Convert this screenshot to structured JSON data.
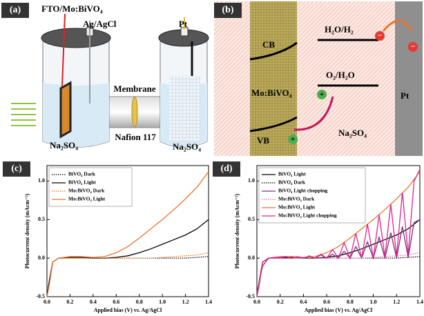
{
  "panel_a": {
    "label": "(a)",
    "working_electrode": "FTO/Mo:BiVO₄",
    "reference_electrode": "Ag/AgCl",
    "counter_electrode": "Pt",
    "membrane": "Membrane",
    "membrane_type": "Nafion 117",
    "electrolyte_left": "Na₂SO₄",
    "electrolyte_right": "Na₂SO₄"
  },
  "panel_b": {
    "label": "(b)",
    "cb": "CB",
    "vb": "VB",
    "semiconductor": "Mo:BiVO₄",
    "reduction": "H₂O/H₂",
    "oxidation": "O₂/H₂O",
    "electrolyte": "Na₂SO₄",
    "metal": "Pt",
    "electron": "−",
    "hole": "+"
  },
  "chart_data": [
    {
      "type": "line",
      "label": "(c)",
      "xlabel": "Applied bias (V) vs. Ag/AgCl",
      "ylabel": "Photocurrent density (mAcm⁻²)",
      "x": [
        0,
        0.02,
        0.05,
        0.1,
        0.2,
        0.3,
        0.4,
        0.5,
        0.6,
        0.7,
        0.8,
        0.9,
        1.0,
        1.1,
        1.2,
        1.3,
        1.4
      ],
      "xlim": [
        0,
        1.4
      ],
      "ylim": [
        -0.5,
        1.2
      ],
      "xticks": [
        {
          "value": 0,
          "label": "0.0"
        },
        0.2,
        0.4,
        0.6,
        0.8,
        {
          "value": 1,
          "label": "1.0"
        },
        1.2,
        1.4
      ],
      "yticks": [
        -0.5,
        {
          "value": 0,
          "label": "0.0"
        },
        0.5,
        {
          "value": 1,
          "label": "1.0"
        }
      ],
      "series": [
        {
          "name": "BiVO₄ Dark",
          "color": "#000000",
          "style": "dotted",
          "values": [
            -0.5,
            -0.3,
            -0.05,
            0,
            0,
            0,
            0,
            0,
            0,
            0,
            0,
            0,
            0,
            0,
            0,
            0.01,
            0.02
          ]
        },
        {
          "name": "BiVO₄ Light",
          "color": "#000000",
          "style": "solid",
          "values": [
            -0.5,
            -0.3,
            -0.05,
            0,
            0.01,
            0.01,
            0,
            0,
            0.01,
            0.03,
            0.07,
            0.12,
            0.18,
            0.24,
            0.3,
            0.38,
            0.5
          ]
        },
        {
          "name": "Mo:BiVO₄ Dark",
          "color": "#e8732a",
          "style": "dotted",
          "values": [
            -0.5,
            -0.35,
            -0.05,
            0,
            0,
            0,
            0,
            0,
            0,
            0,
            0,
            0,
            0.01,
            0.02,
            0.03,
            0.04,
            0.07
          ]
        },
        {
          "name": "Mo:BiVO₄ Light",
          "color": "#e8732a",
          "style": "solid",
          "values": [
            -0.5,
            -0.35,
            -0.05,
            0,
            0.02,
            0.02,
            0.01,
            0.02,
            0.07,
            0.15,
            0.26,
            0.38,
            0.5,
            0.63,
            0.77,
            0.92,
            1.12
          ]
        }
      ]
    },
    {
      "type": "line",
      "label": "(d)",
      "xlabel": "Applied bias (V) vs. Ag/AgCl",
      "ylabel": "Photocurrent density (mAcm⁻²)",
      "x": [
        0,
        0.02,
        0.05,
        0.1,
        0.2,
        0.3,
        0.4,
        0.5,
        0.6,
        0.7,
        0.8,
        0.9,
        1.0,
        1.1,
        1.2,
        1.3,
        1.4
      ],
      "xlim": [
        0,
        1.4
      ],
      "ylim": [
        -0.5,
        1.2
      ],
      "xticks": [
        {
          "value": 0,
          "label": "0.0"
        },
        0.2,
        0.4,
        0.6,
        0.8,
        {
          "value": 1,
          "label": "1.0"
        },
        1.2,
        1.4
      ],
      "yticks": [
        -0.5,
        {
          "value": 0,
          "label": "0.0"
        },
        0.5,
        {
          "value": 1,
          "label": "1.0"
        }
      ],
      "series": [
        {
          "name": "BiVO₄ Light",
          "color": "#000000",
          "style": "solid",
          "values": [
            -0.5,
            -0.3,
            -0.05,
            0,
            0.01,
            0.01,
            0,
            0,
            0.01,
            0.03,
            0.07,
            0.12,
            0.18,
            0.24,
            0.3,
            0.38,
            0.5
          ]
        },
        {
          "name": "BiVO₄ Dark",
          "color": "#000000",
          "style": "dotted",
          "values": [
            -0.5,
            -0.3,
            -0.05,
            0,
            0,
            0,
            0,
            0,
            0,
            0,
            0,
            0,
            0,
            0,
            0,
            0.01,
            0.02
          ]
        },
        {
          "name": "BiVO₄ Light chopping",
          "color": "#7b2d7f",
          "style": "solid",
          "x": [
            0,
            0.05,
            0.1,
            0.15,
            0.2,
            0.25,
            0.3,
            0.35,
            0.4,
            0.45,
            0.5,
            0.55,
            0.6,
            0.65,
            0.7,
            0.75,
            0.8,
            0.85,
            0.9,
            0.95,
            1.0,
            1.05,
            1.1,
            1.15,
            1.2,
            1.25,
            1.3,
            1.35,
            1.4
          ],
          "values": [
            -0.45,
            -0.1,
            0,
            0,
            0,
            0,
            0,
            0.01,
            0,
            0.02,
            0,
            0.04,
            0,
            0.05,
            0,
            0.09,
            0,
            0.15,
            0,
            0.21,
            0,
            0.27,
            0,
            0.33,
            0,
            0.41,
            0.01,
            0.46,
            0.5
          ]
        },
        {
          "name": "Mo:BiVO₄ Dark",
          "color": "#e36fa8",
          "style": "dotted",
          "values": [
            -0.5,
            -0.35,
            -0.05,
            0,
            0,
            0,
            0,
            0,
            0,
            0,
            0,
            0,
            0.01,
            0.02,
            0.03,
            0.04,
            0.07
          ]
        },
        {
          "name": "Mo:BiVO₄ Light",
          "color": "#e8732a",
          "style": "solid",
          "values": [
            -0.5,
            -0.35,
            -0.05,
            0,
            0.02,
            0.02,
            0.01,
            0.02,
            0.07,
            0.15,
            0.26,
            0.38,
            0.5,
            0.63,
            0.77,
            0.92,
            1.12
          ]
        },
        {
          "name": "Mo:BiVO₄ Light chopping",
          "color": "#e0208f",
          "style": "solid",
          "x": [
            0,
            0.05,
            0.1,
            0.15,
            0.2,
            0.25,
            0.3,
            0.35,
            0.4,
            0.45,
            0.5,
            0.55,
            0.6,
            0.65,
            0.7,
            0.75,
            0.8,
            0.85,
            0.9,
            0.95,
            1.0,
            1.05,
            1.1,
            1.15,
            1.2,
            1.25,
            1.3,
            1.35,
            1.4
          ],
          "values": [
            -0.5,
            -0.05,
            0,
            0.01,
            0.01,
            0.02,
            0,
            0.02,
            0,
            0.03,
            0,
            0.05,
            0,
            0.11,
            0,
            0.2,
            0,
            0.32,
            0,
            0.44,
            0,
            0.56,
            0.02,
            0.7,
            0.03,
            0.85,
            0.04,
            1.0,
            1.15
          ]
        }
      ]
    }
  ]
}
